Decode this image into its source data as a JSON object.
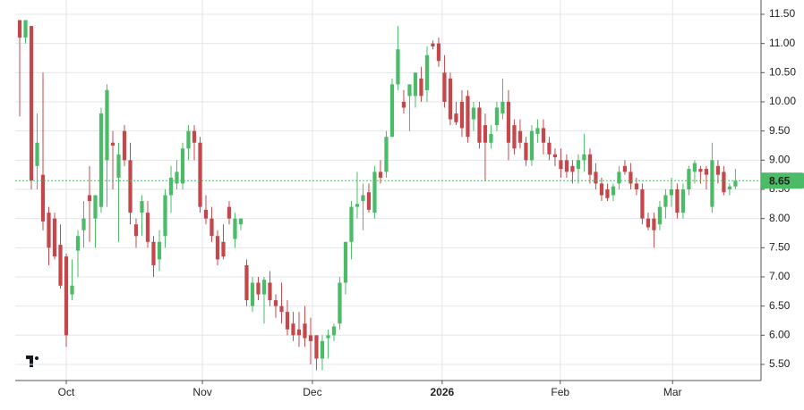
{
  "chart_data": {
    "type": "candlestick",
    "up_color": "#4cbb68",
    "down_color": "#c4484b",
    "grid": true,
    "ylim": [
      5.224,
      11.745
    ],
    "yticks": [
      {
        "value": 5.5,
        "label": "5.50"
      },
      {
        "value": 6,
        "label": "6.00"
      },
      {
        "value": 6.5,
        "label": "6.50"
      },
      {
        "value": 7,
        "label": "7.00"
      },
      {
        "value": 7.5,
        "label": "7.50"
      },
      {
        "value": 8,
        "label": "8.00"
      },
      {
        "value": 8.5,
        "label": "8.50"
      },
      {
        "value": 9,
        "label": "9.00"
      },
      {
        "value": 9.5,
        "label": "9.50"
      },
      {
        "value": 10,
        "label": "10.00"
      },
      {
        "value": 10.5,
        "label": "10.50"
      },
      {
        "value": 11,
        "label": "11.00"
      },
      {
        "value": 11.5,
        "label": "11.50"
      }
    ],
    "xlim": [
      -0.77,
      127.4
    ],
    "xticks": [
      {
        "value": 8,
        "label": "Oct"
      },
      {
        "value": 31.4,
        "label": "Nov"
      },
      {
        "value": 50.3,
        "label": "Dec"
      },
      {
        "value": 72.6,
        "label": "2026"
      },
      {
        "value": 92.9,
        "label": "Feb"
      },
      {
        "value": 112.2,
        "label": "Mar"
      }
    ],
    "last_price": {
      "value": 8.65,
      "label": "8.65"
    },
    "ohlc": [
      [
        11.4,
        11.4,
        9.75,
        11.1
      ],
      [
        11.1,
        11.4,
        11.0,
        11.4
      ],
      [
        11.3,
        11.3,
        8.5,
        8.65
      ],
      [
        8.9,
        9.8,
        8.5,
        9.3
      ],
      [
        8.75,
        10.5,
        7.8,
        7.95
      ],
      [
        8.1,
        8.2,
        7.2,
        7.5
      ],
      [
        8.0,
        8.1,
        7.3,
        7.35
      ],
      [
        7.55,
        7.9,
        6.8,
        6.85
      ],
      [
        7.35,
        7.4,
        5.8,
        6.0
      ],
      [
        6.7,
        7.3,
        6.6,
        6.85
      ],
      [
        7.45,
        7.8,
        7.0,
        7.7
      ],
      [
        7.8,
        8.3,
        7.5,
        8.0
      ],
      [
        8.4,
        8.9,
        7.6,
        8.3
      ],
      [
        8.0,
        8.4,
        7.5,
        8.4
      ],
      [
        8.2,
        9.9,
        8.1,
        9.8
      ],
      [
        9.0,
        10.3,
        8.2,
        10.2
      ],
      [
        9.3,
        9.5,
        8.5,
        9.25
      ],
      [
        8.7,
        9.3,
        7.6,
        9.1
      ],
      [
        9.5,
        9.6,
        8.9,
        9.0
      ],
      [
        9.0,
        9.3,
        7.9,
        8.1
      ],
      [
        7.9,
        8.0,
        7.5,
        7.7
      ],
      [
        8.1,
        8.4,
        7.7,
        8.3
      ],
      [
        8.1,
        8.3,
        7.5,
        7.6
      ],
      [
        7.6,
        7.7,
        7.0,
        7.2
      ],
      [
        7.3,
        7.8,
        7.1,
        7.6
      ],
      [
        7.7,
        8.5,
        7.5,
        8.4
      ],
      [
        8.4,
        8.9,
        8.1,
        8.7
      ],
      [
        8.6,
        9.0,
        8.5,
        8.8
      ],
      [
        8.6,
        9.3,
        8.5,
        9.2
      ],
      [
        9.2,
        9.6,
        9.0,
        9.5
      ],
      [
        9.5,
        9.6,
        9.0,
        9.3
      ],
      [
        9.3,
        9.4,
        8.1,
        8.2
      ],
      [
        8.15,
        8.4,
        7.9,
        8.0
      ],
      [
        8.0,
        8.2,
        7.6,
        7.7
      ],
      [
        7.7,
        7.8,
        7.2,
        7.3
      ],
      [
        7.6,
        7.9,
        7.3,
        7.35
      ],
      [
        8.2,
        8.3,
        7.9,
        8.0
      ],
      [
        7.65,
        8.1,
        7.5,
        8.0
      ],
      [
        7.9,
        8.0,
        7.8,
        8.0
      ],
      [
        7.2,
        7.3,
        6.5,
        6.6
      ],
      [
        6.5,
        7.0,
        6.4,
        6.9
      ],
      [
        6.9,
        7.0,
        6.6,
        6.7
      ],
      [
        6.7,
        7.0,
        6.2,
        6.95
      ],
      [
        6.9,
        7.1,
        6.5,
        6.6
      ],
      [
        6.6,
        6.7,
        6.3,
        6.5
      ],
      [
        6.5,
        6.9,
        6.2,
        6.4
      ],
      [
        6.4,
        6.6,
        6.0,
        6.1
      ],
      [
        6.2,
        6.4,
        5.9,
        6.0
      ],
      [
        6.1,
        6.4,
        5.8,
        6.0
      ],
      [
        6.2,
        6.5,
        5.8,
        5.95
      ],
      [
        6.0,
        6.3,
        5.5,
        5.9
      ],
      [
        6.0,
        6.0,
        5.4,
        5.6
      ],
      [
        5.6,
        6.0,
        5.4,
        5.9
      ],
      [
        5.95,
        6.1,
        5.6,
        6.0
      ],
      [
        6.0,
        6.2,
        5.9,
        6.15
      ],
      [
        6.2,
        7.0,
        6.1,
        6.9
      ],
      [
        6.9,
        7.6,
        6.7,
        7.6
      ],
      [
        7.6,
        8.3,
        7.3,
        8.2
      ],
      [
        8.2,
        8.8,
        8.0,
        8.25
      ],
      [
        8.3,
        8.6,
        7.8,
        8.4
      ],
      [
        8.45,
        8.6,
        8.1,
        8.15
      ],
      [
        8.1,
        8.9,
        8.0,
        8.8
      ],
      [
        8.8,
        9.0,
        8.6,
        8.7
      ],
      [
        8.8,
        9.5,
        8.7,
        9.4
      ],
      [
        9.4,
        10.4,
        9.4,
        10.3
      ],
      [
        10.3,
        11.3,
        10.2,
        10.9
      ],
      [
        10.0,
        10.2,
        9.8,
        9.9
      ],
      [
        10.1,
        10.3,
        9.5,
        10.3
      ],
      [
        10.1,
        10.5,
        9.9,
        10.5
      ],
      [
        10.4,
        10.6,
        10.0,
        10.1
      ],
      [
        10.2,
        10.95,
        10.0,
        10.8
      ],
      [
        11.0,
        11.05,
        10.9,
        10.95
      ],
      [
        11.0,
        11.1,
        10.6,
        10.7
      ],
      [
        10.5,
        10.8,
        9.9,
        10.0
      ],
      [
        10.4,
        10.5,
        9.6,
        9.7
      ],
      [
        9.8,
        10.0,
        9.6,
        9.65
      ],
      [
        10.0,
        10.2,
        9.4,
        9.55
      ],
      [
        10.1,
        10.2,
        9.3,
        9.4
      ],
      [
        9.7,
        10.0,
        9.5,
        9.9
      ],
      [
        9.9,
        10.0,
        9.2,
        9.3
      ],
      [
        9.6,
        9.8,
        8.65,
        9.3
      ],
      [
        9.3,
        9.6,
        9.2,
        9.45
      ],
      [
        9.6,
        10.0,
        9.5,
        9.9
      ],
      [
        9.8,
        10.4,
        9.7,
        10.0
      ],
      [
        10.0,
        10.2,
        9.0,
        9.3
      ],
      [
        9.6,
        9.7,
        9.1,
        9.2
      ],
      [
        9.5,
        9.7,
        9.2,
        9.3
      ],
      [
        9.3,
        9.4,
        8.9,
        9.0
      ],
      [
        9.0,
        9.6,
        8.9,
        9.5
      ],
      [
        9.45,
        9.7,
        9.3,
        9.55
      ],
      [
        9.55,
        9.7,
        9.1,
        9.3
      ],
      [
        9.3,
        9.4,
        9.0,
        9.1
      ],
      [
        9.1,
        9.2,
        8.9,
        9.05
      ],
      [
        9.0,
        9.2,
        8.7,
        8.85
      ],
      [
        9.0,
        9.1,
        8.7,
        8.8
      ],
      [
        8.9,
        9.0,
        8.6,
        8.8
      ],
      [
        8.85,
        9.1,
        8.6,
        9.0
      ],
      [
        9.0,
        9.45,
        8.8,
        9.1
      ],
      [
        9.1,
        9.2,
        8.6,
        8.75
      ],
      [
        8.8,
        8.95,
        8.5,
        8.6
      ],
      [
        8.6,
        8.7,
        8.3,
        8.4
      ],
      [
        8.5,
        8.6,
        8.3,
        8.35
      ],
      [
        8.4,
        8.6,
        8.3,
        8.55
      ],
      [
        8.6,
        8.9,
        8.5,
        8.8
      ],
      [
        8.9,
        9.0,
        8.75,
        8.8
      ],
      [
        8.8,
        8.95,
        8.5,
        8.6
      ],
      [
        8.6,
        8.7,
        8.4,
        8.5
      ],
      [
        8.5,
        8.6,
        7.9,
        8.0
      ],
      [
        8.0,
        8.1,
        7.8,
        7.85
      ],
      [
        8.0,
        8.1,
        7.5,
        7.8
      ],
      [
        7.9,
        8.3,
        7.8,
        8.2
      ],
      [
        8.2,
        8.5,
        8.0,
        8.4
      ],
      [
        8.4,
        8.7,
        8.2,
        8.5
      ],
      [
        8.5,
        8.6,
        8.0,
        8.1
      ],
      [
        8.1,
        8.6,
        8.0,
        8.5
      ],
      [
        8.5,
        8.9,
        8.4,
        8.85
      ],
      [
        8.8,
        9.0,
        8.6,
        8.95
      ],
      [
        8.85,
        8.9,
        8.6,
        8.8
      ],
      [
        8.85,
        8.9,
        8.5,
        8.75
      ],
      [
        8.2,
        9.3,
        8.1,
        9.0
      ],
      [
        8.9,
        9.0,
        8.6,
        8.75
      ],
      [
        8.8,
        8.9,
        8.4,
        8.45
      ],
      [
        8.5,
        8.6,
        8.4,
        8.55
      ],
      [
        8.55,
        8.85,
        8.5,
        8.65
      ]
    ]
  }
}
